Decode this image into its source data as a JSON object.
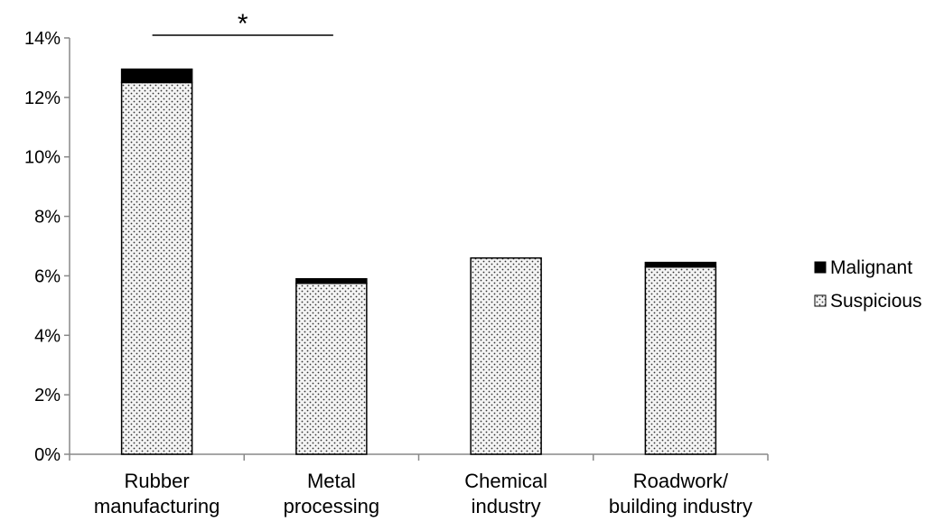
{
  "chart_data": {
    "type": "bar",
    "stacked": true,
    "categories": [
      [
        "Rubber",
        "manufacturing"
      ],
      [
        "Metal",
        "processing"
      ],
      [
        "Chemical",
        "industry"
      ],
      [
        "Roadwork/",
        "building industry"
      ]
    ],
    "series": [
      {
        "name": "Suspicious",
        "values": [
          12.5,
          5.75,
          6.6,
          6.3
        ],
        "color": "#ffffff",
        "pattern": "dotted"
      },
      {
        "name": "Malignant",
        "values": [
          0.45,
          0.15,
          0.0,
          0.15
        ],
        "color": "#000000"
      }
    ],
    "y_axis": {
      "min": 0,
      "max": 14,
      "tick_step": 2,
      "ticks": [
        "0%",
        "2%",
        "4%",
        "6%",
        "8%",
        "10%",
        "12%",
        "14%"
      ]
    },
    "legend": {
      "position": "right",
      "entries": [
        "Malignant",
        "Suspicious"
      ]
    },
    "annotation": {
      "text": "*",
      "from_category": 0,
      "to_category": 1
    },
    "grid": false
  }
}
